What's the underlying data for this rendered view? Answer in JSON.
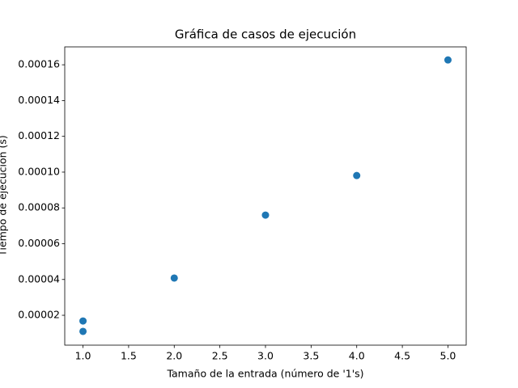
{
  "chart_data": {
    "type": "scatter",
    "title": "Gráfica de casos de ejecución",
    "x_label": "Tamaño de la entrada (número de '1's)",
    "y_label": "Tiempo de ejecución (s)",
    "x": [
      1,
      1,
      2,
      3,
      4,
      5
    ],
    "values": [
      1.68e-05,
      1.1e-05,
      4.08e-05,
      7.6e-05,
      9.81e-05,
      0.0001627
    ],
    "color": "#1f77b4",
    "xlim": [
      0.8,
      5.2
    ],
    "xticks": [
      {
        "value": 1,
        "label": "1.0"
      },
      1.5,
      {
        "value": 2,
        "label": "2.0"
      },
      2.5,
      {
        "value": 3,
        "label": "3.0"
      },
      3.5,
      {
        "value": 4,
        "label": "4.0"
      },
      4.5,
      {
        "value": 5,
        "label": "5.0"
      }
    ],
    "ylim": [
      3.3e-06,
      0.00017
    ],
    "yticks": [
      2e-05,
      4e-05,
      6e-05,
      8e-05,
      {
        "value": 0.0001,
        "label": "0.00010"
      },
      0.00012,
      0.00014,
      0.00016
    ],
    "grid": false
  }
}
